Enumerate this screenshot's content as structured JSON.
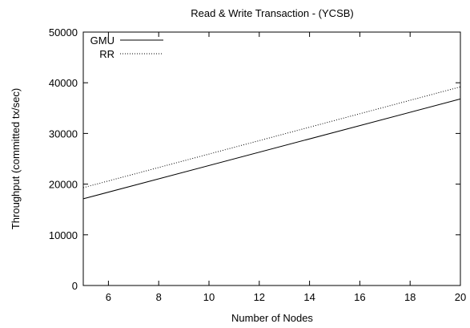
{
  "chart_data": {
    "type": "line",
    "title": "Read & Write Transaction - (YCSB)",
    "xlabel": "Number of Nodes",
    "ylabel": "Throughput (committed tx/sec)",
    "xlim": [
      5,
      20
    ],
    "ylim": [
      0,
      50000
    ],
    "xticks": [
      6,
      8,
      10,
      12,
      14,
      16,
      18,
      20
    ],
    "yticks": [
      0,
      10000,
      20000,
      30000,
      40000,
      50000
    ],
    "grid": false,
    "legend_position": "top-left",
    "series": [
      {
        "name": "GMU",
        "style": "solid",
        "color": "#000000",
        "x": [
          5,
          20
        ],
        "y": [
          17100,
          36800
        ]
      },
      {
        "name": "RR",
        "style": "dotted",
        "color": "#000000",
        "x": [
          5,
          20
        ],
        "y": [
          19300,
          39200
        ]
      }
    ]
  }
}
